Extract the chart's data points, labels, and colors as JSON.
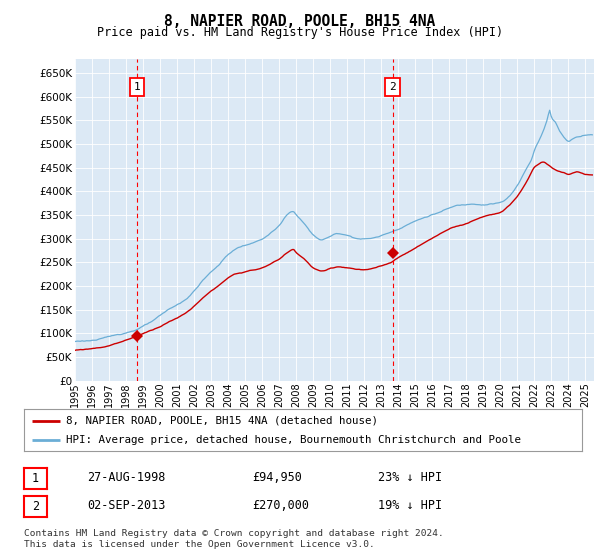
{
  "title": "8, NAPIER ROAD, POOLE, BH15 4NA",
  "subtitle": "Price paid vs. HM Land Registry's House Price Index (HPI)",
  "ylim": [
    0,
    680000
  ],
  "yticks": [
    0,
    50000,
    100000,
    150000,
    200000,
    250000,
    300000,
    350000,
    400000,
    450000,
    500000,
    550000,
    600000,
    650000
  ],
  "background_color": "#dce9f5",
  "red_line_color": "#cc0000",
  "blue_line_color": "#6baed6",
  "sale1_x": 1998.65,
  "sale1_y": 94950,
  "sale2_x": 2013.67,
  "sale2_y": 270000,
  "legend_entry1": "8, NAPIER ROAD, POOLE, BH15 4NA (detached house)",
  "legend_entry2": "HPI: Average price, detached house, Bournemouth Christchurch and Poole",
  "table_row1": [
    "1",
    "27-AUG-1998",
    "£94,950",
    "23% ↓ HPI"
  ],
  "table_row2": [
    "2",
    "02-SEP-2013",
    "£270,000",
    "19% ↓ HPI"
  ],
  "footnote": "Contains HM Land Registry data © Crown copyright and database right 2024.\nThis data is licensed under the Open Government Licence v3.0.",
  "xmin": 1995,
  "xmax": 2025.5,
  "hpi_points": [
    [
      1995.0,
      83000
    ],
    [
      1995.5,
      84500
    ],
    [
      1996.0,
      86000
    ],
    [
      1996.5,
      88000
    ],
    [
      1997.0,
      92000
    ],
    [
      1997.5,
      97000
    ],
    [
      1998.0,
      102000
    ],
    [
      1998.5,
      108000
    ],
    [
      1999.0,
      116000
    ],
    [
      1999.5,
      125000
    ],
    [
      2000.0,
      136000
    ],
    [
      2000.5,
      148000
    ],
    [
      2001.0,
      158000
    ],
    [
      2001.5,
      170000
    ],
    [
      2002.0,
      188000
    ],
    [
      2002.5,
      210000
    ],
    [
      2003.0,
      228000
    ],
    [
      2003.5,
      245000
    ],
    [
      2004.0,
      265000
    ],
    [
      2004.5,
      278000
    ],
    [
      2005.0,
      285000
    ],
    [
      2005.5,
      290000
    ],
    [
      2006.0,
      298000
    ],
    [
      2006.5,
      310000
    ],
    [
      2007.0,
      325000
    ],
    [
      2007.5,
      348000
    ],
    [
      2007.83,
      355000
    ],
    [
      2008.0,
      348000
    ],
    [
      2008.5,
      328000
    ],
    [
      2009.0,
      305000
    ],
    [
      2009.5,
      295000
    ],
    [
      2010.0,
      302000
    ],
    [
      2010.5,
      308000
    ],
    [
      2011.0,
      305000
    ],
    [
      2011.5,
      300000
    ],
    [
      2012.0,
      298000
    ],
    [
      2012.5,
      300000
    ],
    [
      2013.0,
      305000
    ],
    [
      2013.5,
      312000
    ],
    [
      2014.0,
      320000
    ],
    [
      2014.5,
      330000
    ],
    [
      2015.0,
      338000
    ],
    [
      2015.5,
      345000
    ],
    [
      2016.0,
      352000
    ],
    [
      2016.5,
      358000
    ],
    [
      2017.0,
      365000
    ],
    [
      2017.5,
      370000
    ],
    [
      2018.0,
      372000
    ],
    [
      2018.5,
      375000
    ],
    [
      2019.0,
      375000
    ],
    [
      2019.5,
      378000
    ],
    [
      2020.0,
      380000
    ],
    [
      2020.5,
      392000
    ],
    [
      2021.0,
      415000
    ],
    [
      2021.5,
      448000
    ],
    [
      2021.83,
      470000
    ],
    [
      2022.0,
      490000
    ],
    [
      2022.25,
      510000
    ],
    [
      2022.5,
      530000
    ],
    [
      2022.75,
      555000
    ],
    [
      2022.9,
      575000
    ],
    [
      2023.0,
      560000
    ],
    [
      2023.25,
      548000
    ],
    [
      2023.5,
      530000
    ],
    [
      2023.75,
      518000
    ],
    [
      2024.0,
      510000
    ],
    [
      2024.25,
      515000
    ],
    [
      2024.5,
      520000
    ],
    [
      2024.75,
      522000
    ],
    [
      2025.0,
      525000
    ],
    [
      2025.4,
      526000
    ]
  ],
  "red_points": [
    [
      1995.0,
      65000
    ],
    [
      1995.5,
      67000
    ],
    [
      1996.0,
      69000
    ],
    [
      1996.5,
      72000
    ],
    [
      1997.0,
      76000
    ],
    [
      1997.5,
      82000
    ],
    [
      1998.0,
      88000
    ],
    [
      1998.5,
      95000
    ],
    [
      1999.0,
      102000
    ],
    [
      1999.5,
      110000
    ],
    [
      2000.0,
      118000
    ],
    [
      2000.5,
      128000
    ],
    [
      2001.0,
      136000
    ],
    [
      2001.5,
      146000
    ],
    [
      2002.0,
      160000
    ],
    [
      2002.5,
      178000
    ],
    [
      2003.0,
      192000
    ],
    [
      2003.5,
      205000
    ],
    [
      2004.0,
      218000
    ],
    [
      2004.5,
      228000
    ],
    [
      2005.0,
      232000
    ],
    [
      2005.5,
      235000
    ],
    [
      2006.0,
      240000
    ],
    [
      2006.5,
      248000
    ],
    [
      2007.0,
      258000
    ],
    [
      2007.5,
      272000
    ],
    [
      2007.83,
      278000
    ],
    [
      2008.0,
      272000
    ],
    [
      2008.5,
      258000
    ],
    [
      2009.0,
      240000
    ],
    [
      2009.5,
      232000
    ],
    [
      2010.0,
      238000
    ],
    [
      2010.5,
      242000
    ],
    [
      2011.0,
      240000
    ],
    [
      2011.5,
      237000
    ],
    [
      2012.0,
      235000
    ],
    [
      2012.5,
      237000
    ],
    [
      2013.0,
      242000
    ],
    [
      2013.5,
      248000
    ],
    [
      2014.0,
      258000
    ],
    [
      2014.5,
      268000
    ],
    [
      2015.0,
      278000
    ],
    [
      2015.5,
      288000
    ],
    [
      2016.0,
      298000
    ],
    [
      2016.5,
      308000
    ],
    [
      2017.0,
      318000
    ],
    [
      2017.5,
      325000
    ],
    [
      2018.0,
      330000
    ],
    [
      2018.5,
      338000
    ],
    [
      2019.0,
      345000
    ],
    [
      2019.5,
      350000
    ],
    [
      2020.0,
      355000
    ],
    [
      2020.5,
      368000
    ],
    [
      2021.0,
      388000
    ],
    [
      2021.5,
      415000
    ],
    [
      2021.75,
      432000
    ],
    [
      2022.0,
      448000
    ],
    [
      2022.25,
      455000
    ],
    [
      2022.5,
      460000
    ],
    [
      2022.75,
      455000
    ],
    [
      2023.0,
      448000
    ],
    [
      2023.25,
      442000
    ],
    [
      2023.5,
      438000
    ],
    [
      2023.75,
      435000
    ],
    [
      2024.0,
      432000
    ],
    [
      2024.25,
      435000
    ],
    [
      2024.5,
      438000
    ],
    [
      2024.75,
      435000
    ],
    [
      2025.0,
      432000
    ],
    [
      2025.4,
      430000
    ]
  ]
}
